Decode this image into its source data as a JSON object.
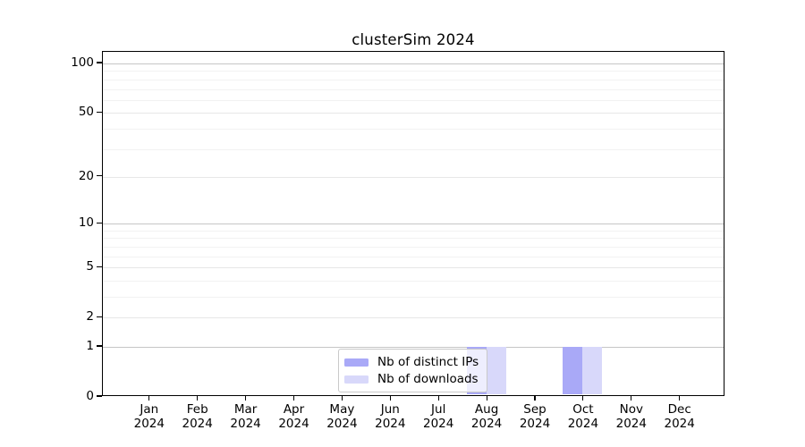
{
  "title": "clusterSim 2024",
  "chart_data": {
    "type": "bar",
    "title": "clusterSim 2024",
    "categories": [
      "Jan 2024",
      "Feb 2024",
      "Mar 2024",
      "Apr 2024",
      "May 2024",
      "Jun 2024",
      "Jul 2024",
      "Aug 2024",
      "Sep 2024",
      "Oct 2024",
      "Nov 2024",
      "Dec 2024"
    ],
    "series": [
      {
        "name": "Nb of distinct IPs",
        "color": "#a9a9f7",
        "values": [
          0,
          0,
          0,
          0,
          0,
          0,
          0,
          1,
          0,
          1,
          0,
          0
        ]
      },
      {
        "name": "Nb of downloads",
        "color": "#d8d8fa",
        "values": [
          0,
          0,
          0,
          0,
          0,
          0,
          0,
          1,
          0,
          1,
          0,
          0
        ]
      }
    ],
    "xlabel": "",
    "ylabel": "",
    "yscale": "log1p",
    "ylim": [
      0,
      117
    ],
    "yticks": [
      0,
      1,
      2,
      5,
      10,
      20,
      50,
      100
    ],
    "yticks_minor": [
      3,
      4,
      6,
      7,
      8,
      9,
      30,
      40,
      60,
      70,
      80,
      90
    ],
    "grid": "horizontal",
    "legend_position": "inside-bottom-center",
    "colors": {
      "decade_gridline": "#c6c6c6",
      "major_gridline": "#e7e7e7",
      "minor_gridline": "#f2f2f2",
      "axis": "#000000",
      "text": "#000000",
      "legend_border": "#c9c9c9",
      "background": "#ffffff"
    }
  }
}
